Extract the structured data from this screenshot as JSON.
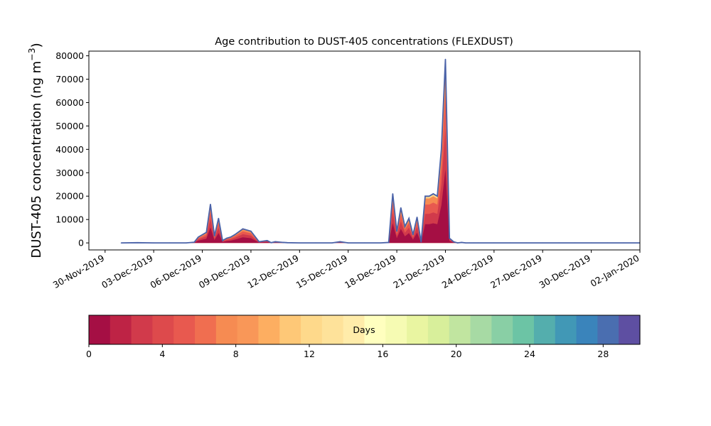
{
  "chart_data": {
    "type": "area",
    "title": "Age contribution to DUST-405 concentrations (FLEXDUST)",
    "ylabel_main": "DUST-405 concentration (ng m",
    "ylabel_exp": "−3",
    "ylabel_close": ")",
    "xlabel": "",
    "xlim": [
      "2019-11-29",
      "2020-01-02"
    ],
    "ylim": [
      -3000,
      82000
    ],
    "yticks": [
      0,
      10000,
      20000,
      30000,
      40000,
      50000,
      60000,
      70000,
      80000
    ],
    "yticklabels": [
      "0",
      "10000",
      "20000",
      "30000",
      "40000",
      "50000",
      "60000",
      "70000",
      "80000"
    ],
    "xticks": [
      "2019-11-30",
      "2019-12-03",
      "2019-12-06",
      "2019-12-09",
      "2019-12-12",
      "2019-12-15",
      "2019-12-18",
      "2019-12-21",
      "2019-12-24",
      "2019-12-27",
      "2019-12-30",
      "2020-01-02"
    ],
    "xticklabels": [
      "30-Nov-2019",
      "03-Dec-2019",
      "06-Dec-2019",
      "09-Dec-2019",
      "12-Dec-2019",
      "15-Dec-2019",
      "18-Dec-2019",
      "21-Dec-2019",
      "24-Dec-2019",
      "27-Dec-2019",
      "30-Dec-2019",
      "02-Jan-2020"
    ],
    "total_line_color": "#4a62a8",
    "series_total": {
      "x": [
        "2019-12-01",
        "2019-12-02",
        "2019-12-03",
        "2019-12-04",
        "2019-12-05",
        "2019-12-05 12:00",
        "2019-12-05 18:00",
        "2019-12-06 06:00",
        "2019-12-06 12:00",
        "2019-12-06 18:00",
        "2019-12-07 00:00",
        "2019-12-07 06:00",
        "2019-12-07 12:00",
        "2019-12-07 18:00",
        "2019-12-08",
        "2019-12-08 12:00",
        "2019-12-09",
        "2019-12-09 12:00",
        "2019-12-10",
        "2019-12-10 06:00",
        "2019-12-10 12:00",
        "2019-12-11",
        "2019-12-11 06:00",
        "2019-12-12",
        "2019-12-13",
        "2019-12-14",
        "2019-12-14 12:00",
        "2019-12-15",
        "2019-12-16",
        "2019-12-17",
        "2019-12-17 12:00",
        "2019-12-17 18:00",
        "2019-12-18 00:00",
        "2019-12-18 06:00",
        "2019-12-18 12:00",
        "2019-12-18 18:00",
        "2019-12-19 00:00",
        "2019-12-19 06:00",
        "2019-12-19 12:00",
        "2019-12-19 18:00",
        "2019-12-20 00:00",
        "2019-12-20 06:00",
        "2019-12-20 12:00",
        "2019-12-20 18:00",
        "2019-12-21 00:00",
        "2019-12-21 06:00",
        "2019-12-21 12:00",
        "2019-12-21 18:00",
        "2019-12-22 00:00",
        "2019-12-22 06:00",
        "2019-12-22 12:00",
        "2019-12-22 18:00",
        "2019-12-23",
        "2019-12-24",
        "2019-12-25",
        "2019-12-26",
        "2019-12-27",
        "2019-12-28",
        "2019-12-29",
        "2019-12-30",
        "2019-12-31",
        "2020-01-01",
        "2020-01-02"
      ],
      "y": [
        0,
        100,
        0,
        0,
        0,
        300,
        2500,
        4500,
        16500,
        3000,
        10500,
        1000,
        2000,
        2500,
        3500,
        6000,
        5000,
        500,
        1000,
        100,
        500,
        200,
        100,
        0,
        0,
        0,
        500,
        0,
        0,
        0,
        200,
        21000,
        5000,
        15000,
        7000,
        10500,
        3500,
        11000,
        400,
        20000,
        20000,
        21000,
        20000,
        40000,
        78500,
        2000,
        500,
        0,
        200,
        0,
        0,
        0,
        0,
        0,
        0,
        0,
        0,
        0,
        0,
        0,
        0,
        0,
        0
      ]
    },
    "colorbar": {
      "label": "Days",
      "ticks": [
        0,
        4,
        8,
        12,
        16,
        20,
        24,
        28
      ],
      "ticklabels": [
        "0",
        "4",
        "8",
        "12",
        "16",
        "20",
        "24",
        "28"
      ],
      "range": [
        0,
        30
      ],
      "colors": [
        "#a50f44",
        "#be2345",
        "#d13a4b",
        "#dd4a4c",
        "#e8594f",
        "#f06e50",
        "#f68b52",
        "#f99758",
        "#fdae61",
        "#fec877",
        "#fed98b",
        "#fee29a",
        "#ffecaa",
        "#ffffbf",
        "#f6fbb3",
        "#e9f5a1",
        "#d8ef9b",
        "#c1e5a0",
        "#a7daa4",
        "#89cfa5",
        "#6cc4a5",
        "#54aead",
        "#4198b6",
        "#3a84bb",
        "#4a6eb0",
        "#5e4fa2"
      ]
    }
  }
}
